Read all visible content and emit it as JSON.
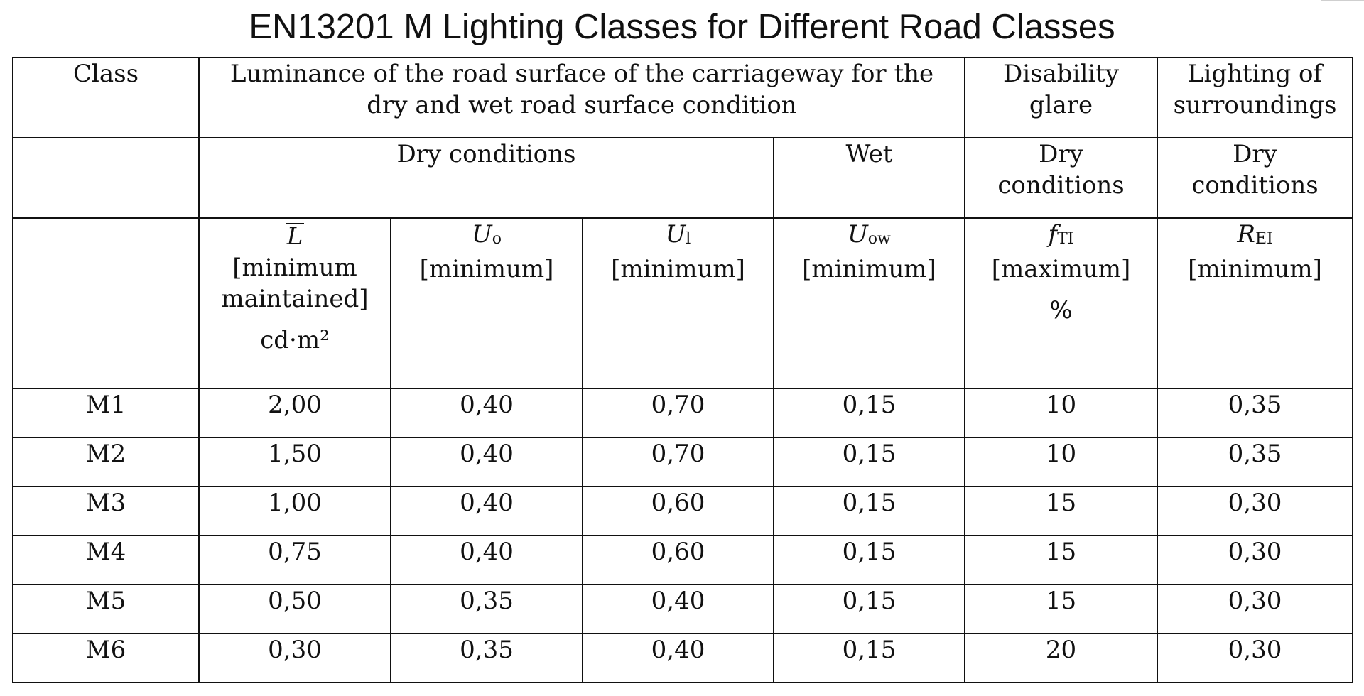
{
  "title": "EN13201 M Lighting Classes for Different Road Classes",
  "header": {
    "class_label": "Class",
    "luminance_group": "Luminance of the road surface of the carriageway for the dry and wet road surface condition",
    "glare_group": "Disability glare",
    "surroundings_group": "Lighting of surroundings",
    "dry_conditions": "Dry conditions",
    "wet": "Wet",
    "glare_dry": "Dry conditions",
    "surroundings_dry": "Dry conditions"
  },
  "params": {
    "L": {
      "symbol": "L",
      "qualifier": "[minimum maintained]",
      "unit": "cd·m²"
    },
    "Uo": {
      "symbol": "U",
      "sub": "o",
      "qualifier": "[minimum]"
    },
    "Ul": {
      "symbol": "U",
      "sub": "l",
      "qualifier": "[minimum]"
    },
    "Uow": {
      "symbol": "U",
      "sub": "ow",
      "qualifier": "[minimum]"
    },
    "fTI": {
      "symbol": "f",
      "sub": "TI",
      "qualifier": "[maximum]",
      "unit": "%"
    },
    "REI": {
      "symbol": "R",
      "sub": "EI",
      "qualifier": "[minimum]"
    }
  },
  "rows": [
    {
      "cls": "M1",
      "L": "2,00",
      "Uo": "0,40",
      "Ul": "0,70",
      "Uow": "0,15",
      "fTI": "10",
      "REI": "0,35"
    },
    {
      "cls": "M2",
      "L": "1,50",
      "Uo": "0,40",
      "Ul": "0,70",
      "Uow": "0,15",
      "fTI": "10",
      "REI": "0,35"
    },
    {
      "cls": "M3",
      "L": "1,00",
      "Uo": "0,40",
      "Ul": "0,60",
      "Uow": "0,15",
      "fTI": "15",
      "REI": "0,30"
    },
    {
      "cls": "M4",
      "L": "0,75",
      "Uo": "0,40",
      "Ul": "0,60",
      "Uow": "0,15",
      "fTI": "15",
      "REI": "0,30"
    },
    {
      "cls": "M5",
      "L": "0,50",
      "Uo": "0,35",
      "Ul": "0,40",
      "Uow": "0,15",
      "fTI": "15",
      "REI": "0,30"
    },
    {
      "cls": "M6",
      "L": "0,30",
      "Uo": "0,35",
      "Ul": "0,40",
      "Uow": "0,15",
      "fTI": "20",
      "REI": "0,30"
    }
  ]
}
